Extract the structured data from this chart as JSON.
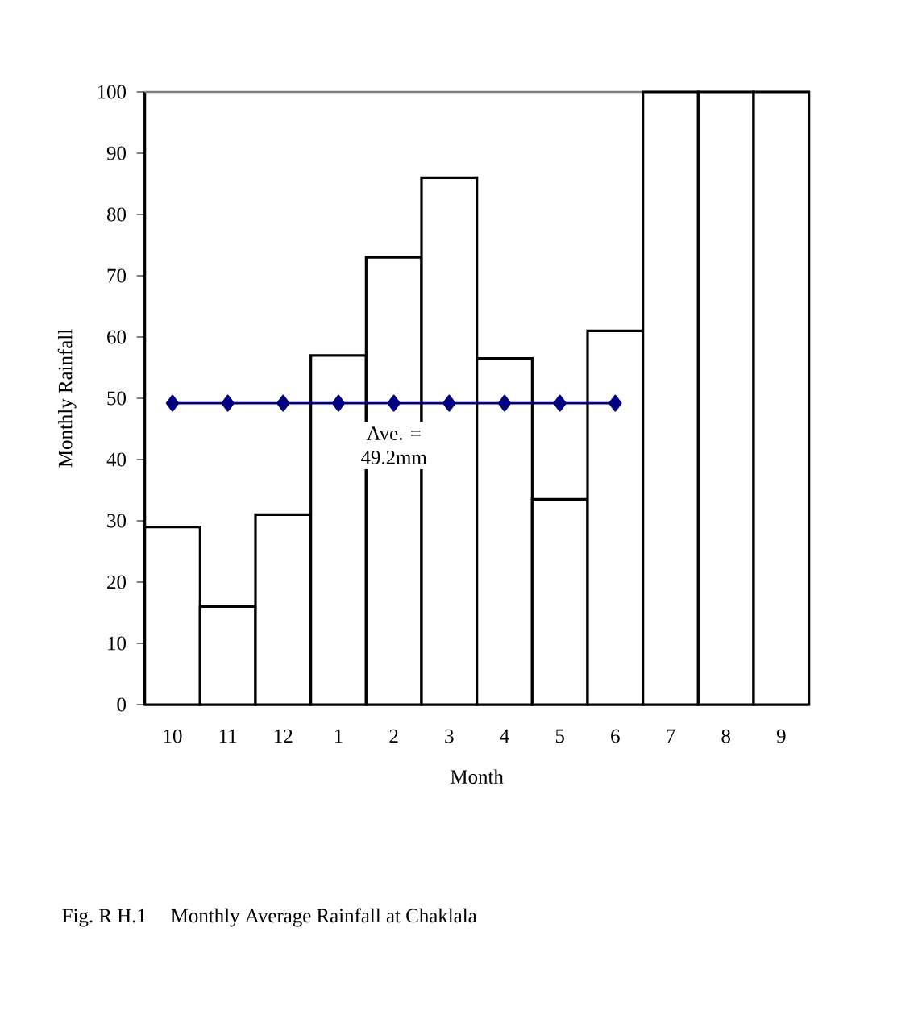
{
  "chart_data": {
    "type": "bar",
    "title": "Fig. R H.1    Monthly Average Rainfall at Chaklala",
    "xlabel": "Month",
    "ylabel": "Monthly Rainfall",
    "categories": [
      "10",
      "11",
      "12",
      "1",
      "2",
      "3",
      "4",
      "5",
      "6",
      "7",
      "8",
      "9"
    ],
    "series": [
      {
        "color": "#ffffff",
        "values": [
          29,
          16,
          31,
          57,
          73,
          86,
          56.5,
          33.5,
          61,
          100,
          100,
          100
        ]
      },
      {
        "type": "line",
        "color": "#000080",
        "marker": "diamond",
        "values": [
          49.2,
          49.2,
          49.2,
          49.2,
          49.2,
          49.2,
          49.2,
          49.2,
          49.2,
          null,
          null,
          null
        ]
      }
    ],
    "ylim": [
      0,
      100
    ],
    "yticks": [
      0,
      10,
      20,
      30,
      40,
      50,
      60,
      70,
      80,
      90,
      100
    ],
    "annotations": [
      {
        "text": "Ave. = 49.2mm",
        "x": "2",
        "y": 49.2
      }
    ]
  }
}
